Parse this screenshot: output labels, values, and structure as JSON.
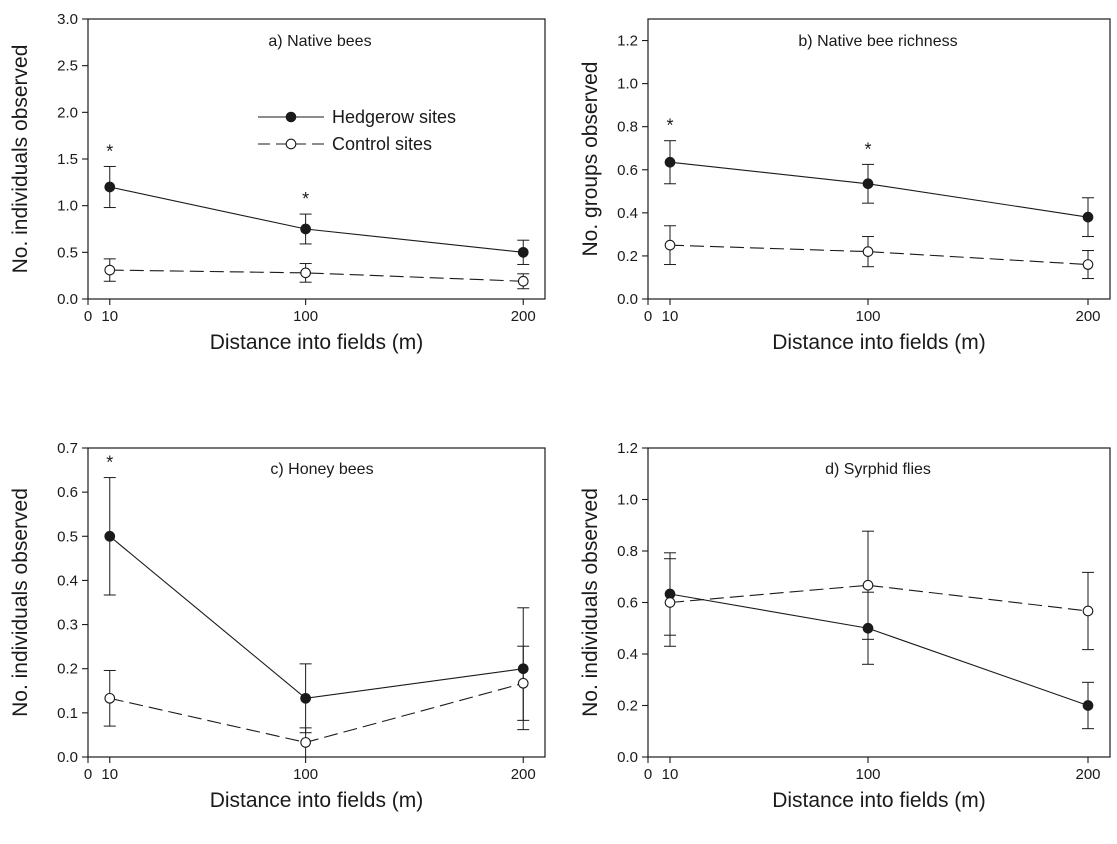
{
  "legend": {
    "hedgerow": "Hedgerow sites",
    "control": "Control sites"
  },
  "colors": {
    "ink": "#1a1a1a",
    "background": "#ffffff"
  },
  "chart_data": [
    {
      "type": "line",
      "title": "a) Native bees",
      "xlabel": "Distance into fields (m)",
      "ylabel": "No. individuals observed",
      "xlim": [
        0,
        210
      ],
      "ylim": [
        0,
        3.0
      ],
      "xticks": [
        0,
        10,
        100,
        200
      ],
      "xtick_labels": [
        "0",
        "10",
        "100",
        "200"
      ],
      "yticks": [
        0,
        0.5,
        1.0,
        1.5,
        2.0,
        2.5,
        3.0
      ],
      "ytick_labels": [
        "0.0",
        "0.5",
        "1.0",
        "1.5",
        "2.0",
        "2.5",
        "3.0"
      ],
      "x": [
        10,
        100,
        200
      ],
      "series": [
        {
          "name": "Hedgerow sites",
          "marker": "filled",
          "line": "solid",
          "values": [
            1.2,
            0.75,
            0.5
          ],
          "errors": [
            0.22,
            0.16,
            0.13
          ]
        },
        {
          "name": "Control sites",
          "marker": "open",
          "line": "dashed",
          "values": [
            0.31,
            0.28,
            0.19
          ],
          "errors": [
            0.12,
            0.1,
            0.08
          ]
        }
      ],
      "significance": [
        {
          "x": 10,
          "label": "*"
        },
        {
          "x": 100,
          "label": "*"
        }
      ],
      "legend": "upper-center",
      "grid": false
    },
    {
      "type": "line",
      "title": "b) Native bee richness",
      "xlabel": "Distance into fields (m)",
      "ylabel": "No. groups observed",
      "xlim": [
        0,
        210
      ],
      "ylim": [
        0,
        1.3
      ],
      "xticks": [
        0,
        10,
        100,
        200
      ],
      "xtick_labels": [
        "0",
        "10",
        "100",
        "200"
      ],
      "yticks": [
        0,
        0.2,
        0.4,
        0.6,
        0.8,
        1.0,
        1.2
      ],
      "ytick_labels": [
        "0.0",
        "0.2",
        "0.4",
        "0.6",
        "0.8",
        "1.0",
        "1.2"
      ],
      "x": [
        10,
        100,
        200
      ],
      "series": [
        {
          "name": "Hedgerow sites",
          "marker": "filled",
          "line": "solid",
          "values": [
            0.635,
            0.535,
            0.38
          ],
          "errors": [
            0.1,
            0.09,
            0.09
          ]
        },
        {
          "name": "Control sites",
          "marker": "open",
          "line": "dashed",
          "values": [
            0.25,
            0.22,
            0.16
          ],
          "errors": [
            0.09,
            0.07,
            0.065
          ]
        }
      ],
      "significance": [
        {
          "x": 10,
          "label": "*"
        },
        {
          "x": 100,
          "label": "*"
        }
      ],
      "grid": false
    },
    {
      "type": "line",
      "title": "c) Honey bees",
      "xlabel": "Distance into fields (m)",
      "ylabel": "No. individuals observed",
      "xlim": [
        0,
        210
      ],
      "ylim": [
        0,
        0.7
      ],
      "xticks": [
        0,
        10,
        100,
        200
      ],
      "xtick_labels": [
        "0",
        "10",
        "100",
        "200"
      ],
      "yticks": [
        0,
        0.1,
        0.2,
        0.3,
        0.4,
        0.5,
        0.6,
        0.7
      ],
      "ytick_labels": [
        "0.0",
        "0.1",
        "0.2",
        "0.3",
        "0.4",
        "0.5",
        "0.6",
        "0.7"
      ],
      "x": [
        10,
        100,
        200
      ],
      "series": [
        {
          "name": "Hedgerow sites",
          "marker": "filled",
          "line": "solid",
          "values": [
            0.5,
            0.133,
            0.2
          ],
          "errors": [
            0.133,
            0.078,
            0.138
          ]
        },
        {
          "name": "Control sites",
          "marker": "open",
          "line": "dashed",
          "values": [
            0.133,
            0.033,
            0.167
          ],
          "errors": [
            0.063,
            0.033,
            0.084
          ]
        }
      ],
      "significance": [
        {
          "x": 10,
          "label": "*"
        }
      ],
      "grid": false
    },
    {
      "type": "line",
      "title": "d) Syrphid flies",
      "xlabel": "Distance into fields (m)",
      "ylabel": "No. individuals observed",
      "xlim": [
        0,
        210
      ],
      "ylim": [
        0,
        1.2
      ],
      "xticks": [
        0,
        10,
        100,
        200
      ],
      "xtick_labels": [
        "0",
        "10",
        "100",
        "200"
      ],
      "yticks": [
        0,
        0.2,
        0.4,
        0.6,
        0.8,
        1.0,
        1.2
      ],
      "ytick_labels": [
        "0.0",
        "0.2",
        "0.4",
        "0.6",
        "0.8",
        "1.0",
        "1.2"
      ],
      "x": [
        10,
        100,
        200
      ],
      "series": [
        {
          "name": "Hedgerow sites",
          "marker": "filled",
          "line": "solid",
          "values": [
            0.633,
            0.5,
            0.2
          ],
          "errors": [
            0.16,
            0.14,
            0.09
          ]
        },
        {
          "name": "Control sites",
          "marker": "open",
          "line": "dashed",
          "values": [
            0.6,
            0.667,
            0.567
          ],
          "errors": [
            0.17,
            0.21,
            0.15
          ]
        }
      ],
      "significance": [],
      "grid": false
    }
  ]
}
